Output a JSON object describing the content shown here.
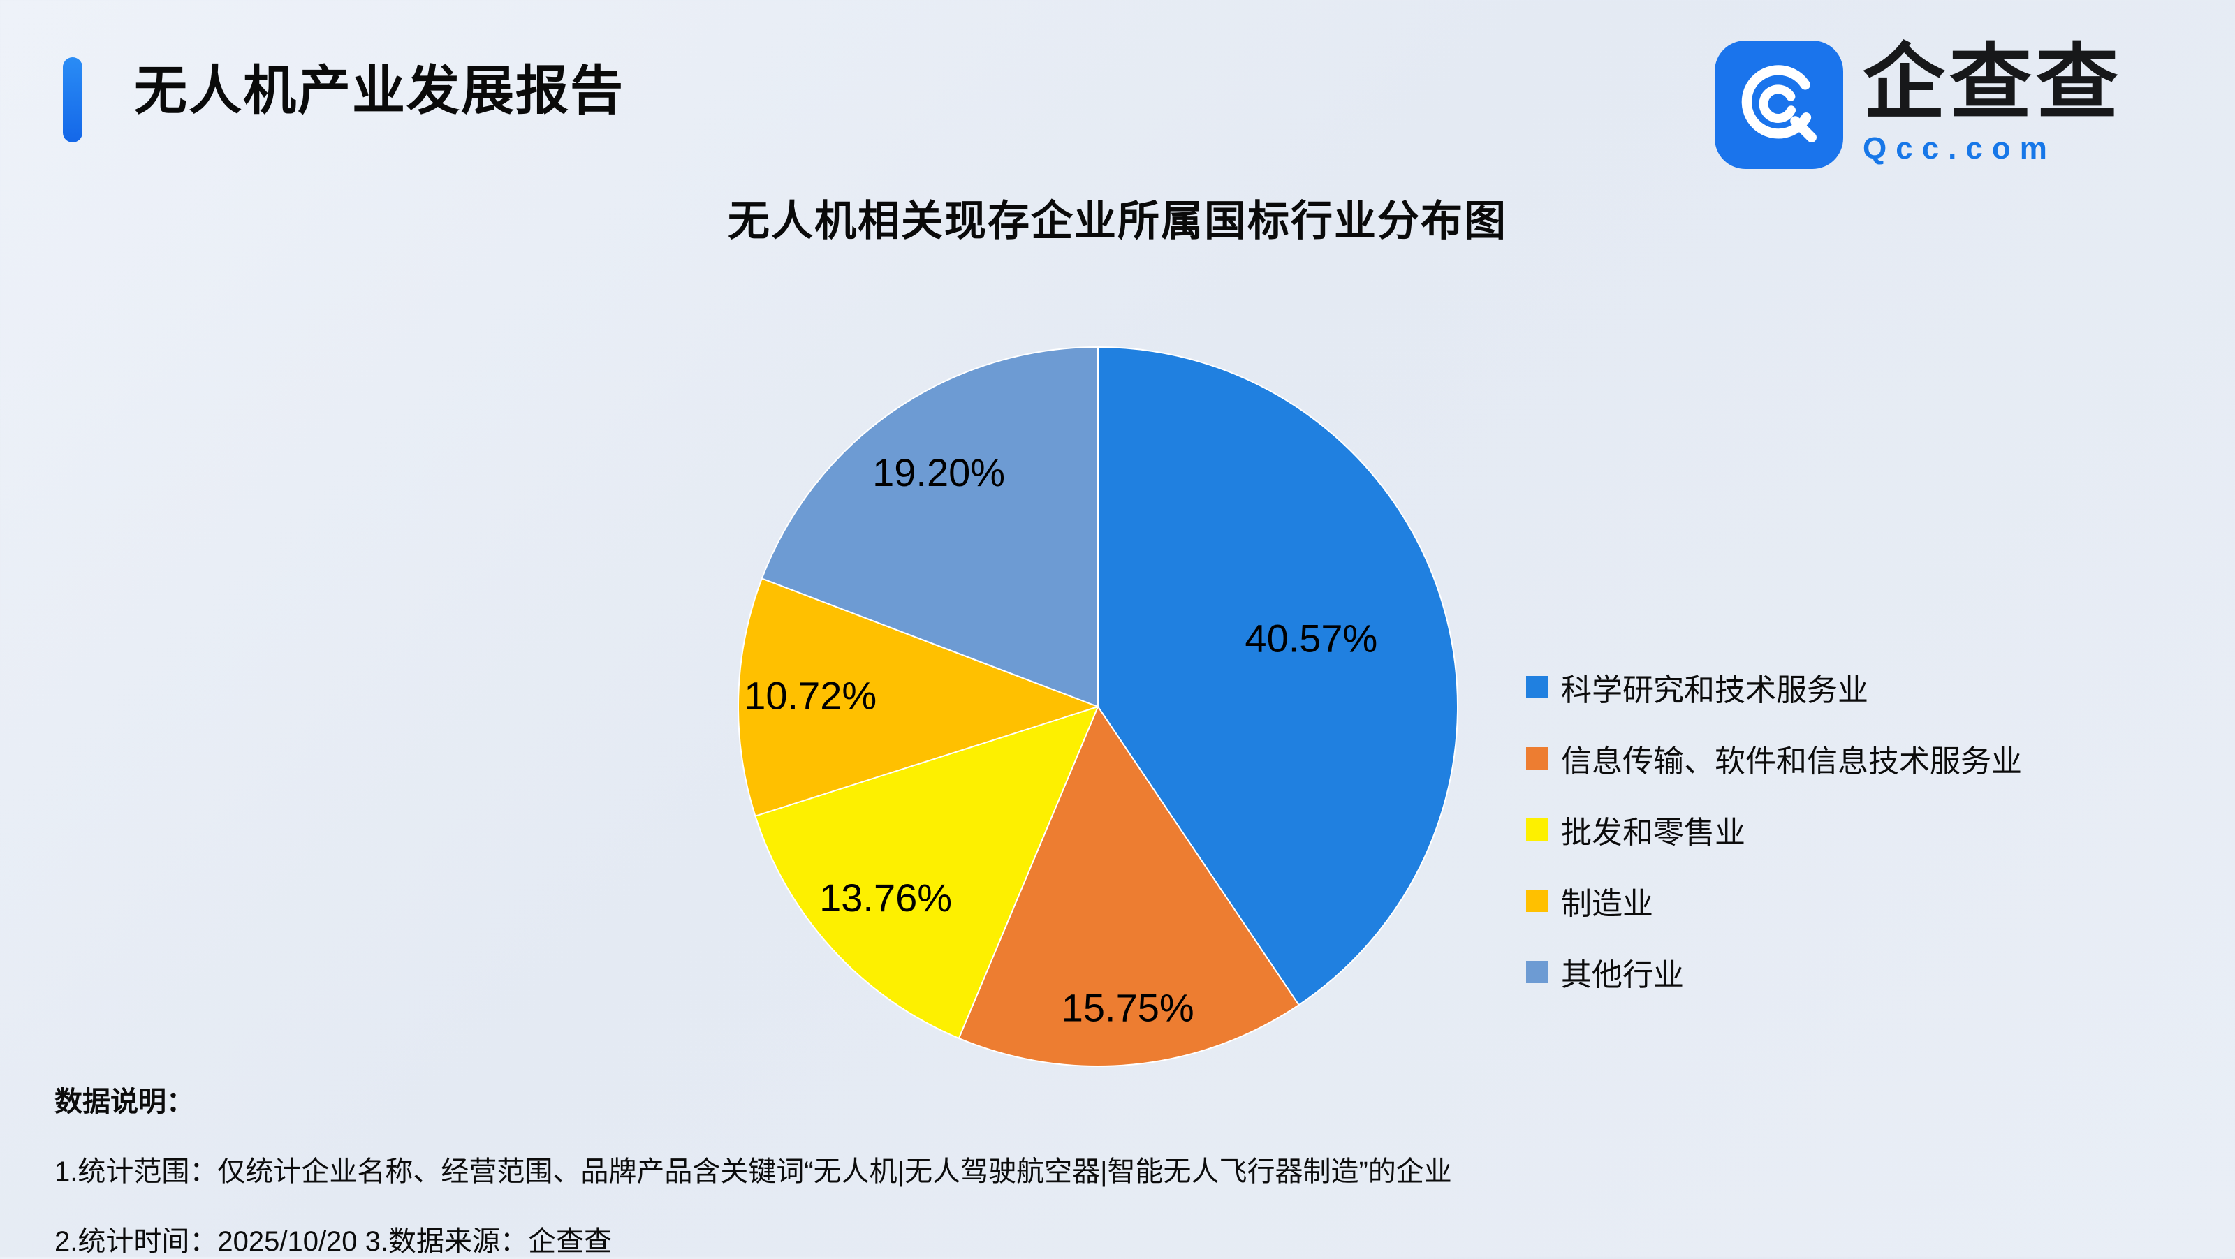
{
  "header": {
    "title": "无人机产业发展报告",
    "logo_name": "企查查",
    "logo_domain": "Qcc.com"
  },
  "chart_data": {
    "type": "pie",
    "title": "无人机相关现存企业所属国标行业分布图",
    "legend_position": "right",
    "start_angle_deg": 0,
    "direction": "clockwise",
    "label_radius": [
      0.62,
      0.85,
      0.8,
      0.8,
      0.78
    ],
    "slices": [
      {
        "label": "科学研究和技术服务业",
        "value": 40.57,
        "display": "40.57%",
        "color": "#2080e0"
      },
      {
        "label": "信息传输、软件和信息技术服务业",
        "value": 15.75,
        "display": "15.75%",
        "color": "#ed7d31"
      },
      {
        "label": "批发和零售业",
        "value": 13.76,
        "display": "13.76%",
        "color": "#fdf000"
      },
      {
        "label": "制造业",
        "value": 10.72,
        "display": "10.72%",
        "color": "#ffc000"
      },
      {
        "label": "其他行业",
        "value": 19.2,
        "display": "19.20%",
        "color": "#6d9bd3"
      }
    ]
  },
  "notes": {
    "heading": "数据说明：",
    "line1": "1.统计范围：仅统计企业名称、经营范围、品牌产品含关键词“无人机|无人驾驶航空器|智能无人飞行器制造”的企业",
    "line2": "2.统计时间：2025/10/20 3.数据来源：企查查"
  }
}
